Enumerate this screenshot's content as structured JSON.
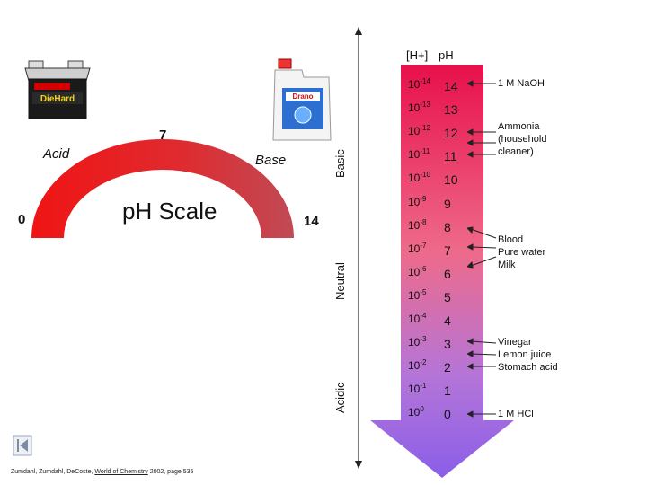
{
  "arc": {
    "label_left": "Acid",
    "label_right": "Base",
    "num_low": "0",
    "num_mid": "7",
    "num_high": "14",
    "title": "pH Scale"
  },
  "axis": {
    "basic": "Basic",
    "neutral": "Neutral",
    "acidic": "Acidic"
  },
  "headers": {
    "h_conc": "[H+]",
    "ph": "pH"
  },
  "rows": [
    {
      "exp": "-14",
      "ph": "14"
    },
    {
      "exp": "-13",
      "ph": "13"
    },
    {
      "exp": "-12",
      "ph": "12"
    },
    {
      "exp": "-11",
      "ph": "11"
    },
    {
      "exp": "-10",
      "ph": "10"
    },
    {
      "exp": "-9",
      "ph": "9"
    },
    {
      "exp": "-8",
      "ph": "8"
    },
    {
      "exp": "-7",
      "ph": "7"
    },
    {
      "exp": "-6",
      "ph": "6"
    },
    {
      "exp": "-5",
      "ph": "5"
    },
    {
      "exp": "-4",
      "ph": "4"
    },
    {
      "exp": "-3",
      "ph": "3"
    },
    {
      "exp": "-2",
      "ph": "2"
    },
    {
      "exp": "-1",
      "ph": "1"
    },
    {
      "exp": "0",
      "ph": "0"
    }
  ],
  "base_str": "10",
  "notes": {
    "naoh": "1 M NaOH",
    "ammonia_1": "Ammonia",
    "ammonia_2": "(household",
    "ammonia_3": "cleaner)",
    "neutral_1": "Blood",
    "neutral_2": "Pure water",
    "neutral_3": "Milk",
    "acid_1": "Vinegar",
    "acid_2": "Lemon juice",
    "acid_3": "Stomach acid",
    "hcl": "1 M HCl"
  },
  "images": {
    "battery_brand": "DieHard",
    "drano_brand": "Drano"
  },
  "citation": {
    "authors": "Zumdahl, Zumdahl, DeCoste, ",
    "book": "World of Chemistry",
    "rest": " 2002, page 535"
  },
  "colors": {
    "acid_red": "#ee1111",
    "base_gray": "#c8505a",
    "arrow_top": "#e8104a",
    "arrow_bottom": "#8a5ee8"
  }
}
